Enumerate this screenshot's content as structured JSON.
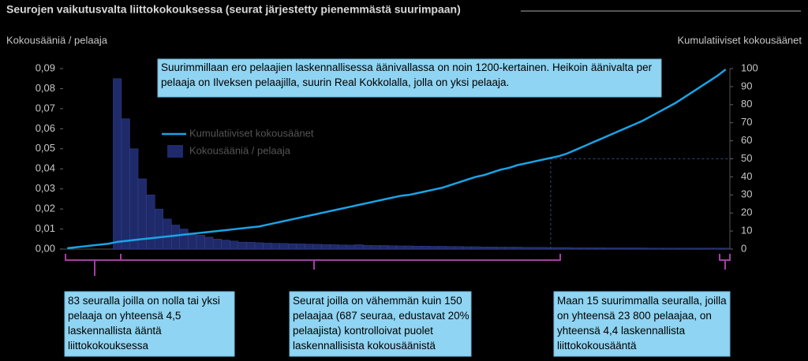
{
  "chart_data": {
    "type": "bar-line",
    "title": "Seurojen vaikutusvalta liittokokouksessa (seurat järjestetty pienemmästä suurimpaan)",
    "ylabel": "Kokousääniä  / pelaaja",
    "y2label": "Kumulatiiviset kokousäänet",
    "annotation": "Suurimmillaan ero pelaajien laskennallisessa äänivallassa on noin 1200-kertainen. Heikoin äänivalta per pelaaja on Ilveksen pelaajilla, suurin Real Kokkolalla, jolla on yksi pelaaja.",
    "callouts": [
      "83 seuralla joilla on nolla tai yksi pelaaja on yhteensä 4,5 laskennallista ääntä liittokokouksessa",
      "Seurat joilla on vähemmän kuin 150 pelaajaa (687 seuraa, edustavat 20% pelaajista) kontrolloivat puolet laskennallisista kokousäänistä",
      "Maan 15 suurimmalla seuralla, joilla on yhteensä 23 800 pelaajaa, on yhteensä 4,4 laskennallista liittokokousääntä"
    ],
    "categories": [
      null,
      null,
      null,
      null,
      null,
      null,
      null,
      null,
      null,
      null,
      null,
      null,
      null,
      null,
      null,
      null,
      null,
      null,
      null,
      null,
      null,
      null,
      null,
      null,
      null,
      null,
      null,
      null,
      null,
      null,
      null,
      null,
      null,
      null,
      null,
      null,
      null,
      null,
      null,
      null,
      null,
      null,
      null,
      null,
      null,
      null,
      null,
      null,
      null,
      null,
      null,
      null,
      null,
      null,
      null,
      null,
      null,
      null,
      null,
      null,
      null,
      null,
      null,
      null,
      null,
      null,
      null,
      null,
      null,
      null,
      null,
      null,
      null,
      null,
      null,
      null,
      null,
      null,
      null,
      null
    ],
    "series": [
      {
        "name": "Kumulatiiviset kokousäänet",
        "color": "#1aa3e6",
        "axis": "y2",
        "kind": "line",
        "values": [
          0.5,
          1,
          1.5,
          2,
          2.5,
          3,
          4,
          4.5,
          5,
          5.5,
          6,
          6.5,
          7,
          7.5,
          8,
          8.5,
          9,
          9.5,
          10,
          10.5,
          11,
          11.5,
          12,
          12.5,
          13.5,
          14.5,
          15.5,
          16.5,
          17.5,
          18.5,
          19.5,
          20.5,
          21.5,
          22.5,
          23.5,
          24.5,
          25.5,
          26.5,
          27.5,
          28.5,
          29.5,
          30,
          31,
          32,
          33,
          34,
          35.5,
          37,
          38.5,
          40,
          41,
          42.5,
          44,
          45,
          46.5,
          47.5,
          48.5,
          49.5,
          50.5,
          51.5,
          53,
          55,
          57,
          59,
          61,
          63,
          65,
          67,
          69,
          71,
          73.5,
          76,
          78.5,
          81,
          84,
          87,
          90,
          93,
          96,
          99.5
        ]
      },
      {
        "name": "Kokousääniä  / pelaaja",
        "color": "#1f2a6b",
        "kind": "bar",
        "values": [
          0,
          0,
          0,
          0,
          0,
          0,
          0.085,
          0.065,
          0.05,
          0.035,
          0.027,
          0.02,
          0.015,
          0.012,
          0.01,
          0.008,
          0.007,
          0.006,
          0.005,
          0.0045,
          0.004,
          0.0035,
          0.0034,
          0.0032,
          0.003,
          0.0029,
          0.0028,
          0.0027,
          0.0026,
          0.0025,
          0.0024,
          0.0023,
          0.0022,
          0.0021,
          0.002,
          0.0022,
          0.0019,
          0.0018,
          0.0018,
          0.0017,
          0.0016,
          0.0016,
          0.0015,
          0.0015,
          0.0014,
          0.0014,
          0.0013,
          0.0013,
          0.0012,
          0.0012,
          0.0011,
          0.0011,
          0.001,
          0.001,
          0.001,
          0.0009,
          0.0009,
          0.0009,
          0.0008,
          0.0008,
          0.0008,
          0.0007,
          0.0007,
          0.0007,
          0.0007,
          0.0006,
          0.0006,
          0.0006,
          0.0006,
          0.0006,
          0.0005,
          0.0005,
          0.0005,
          0.0005,
          0.0005,
          0.0005,
          0.0005,
          0.0005,
          0.0005,
          0.0005
        ]
      }
    ],
    "ylim": [
      0,
      0.09
    ],
    "yticks": [
      {
        "value": 0,
        "label": "0,00"
      },
      {
        "value": 0.01,
        "label": "0,01"
      },
      {
        "value": 0.02,
        "label": "0,02"
      },
      {
        "value": 0.03,
        "label": "0,03"
      },
      {
        "value": 0.04,
        "label": "0,04"
      },
      {
        "value": 0.05,
        "label": "0,05"
      },
      {
        "value": 0.06,
        "label": "0,06"
      },
      {
        "value": 0.07,
        "label": "0,07"
      },
      {
        "value": 0.08,
        "label": "0,08"
      },
      {
        "value": 0.09,
        "label": "0,09"
      }
    ],
    "y2lim": [
      0,
      100
    ],
    "y2ticks": [
      0,
      10,
      20,
      30,
      40,
      50,
      60,
      70,
      80,
      90,
      100
    ],
    "reference_y2": 50
  }
}
